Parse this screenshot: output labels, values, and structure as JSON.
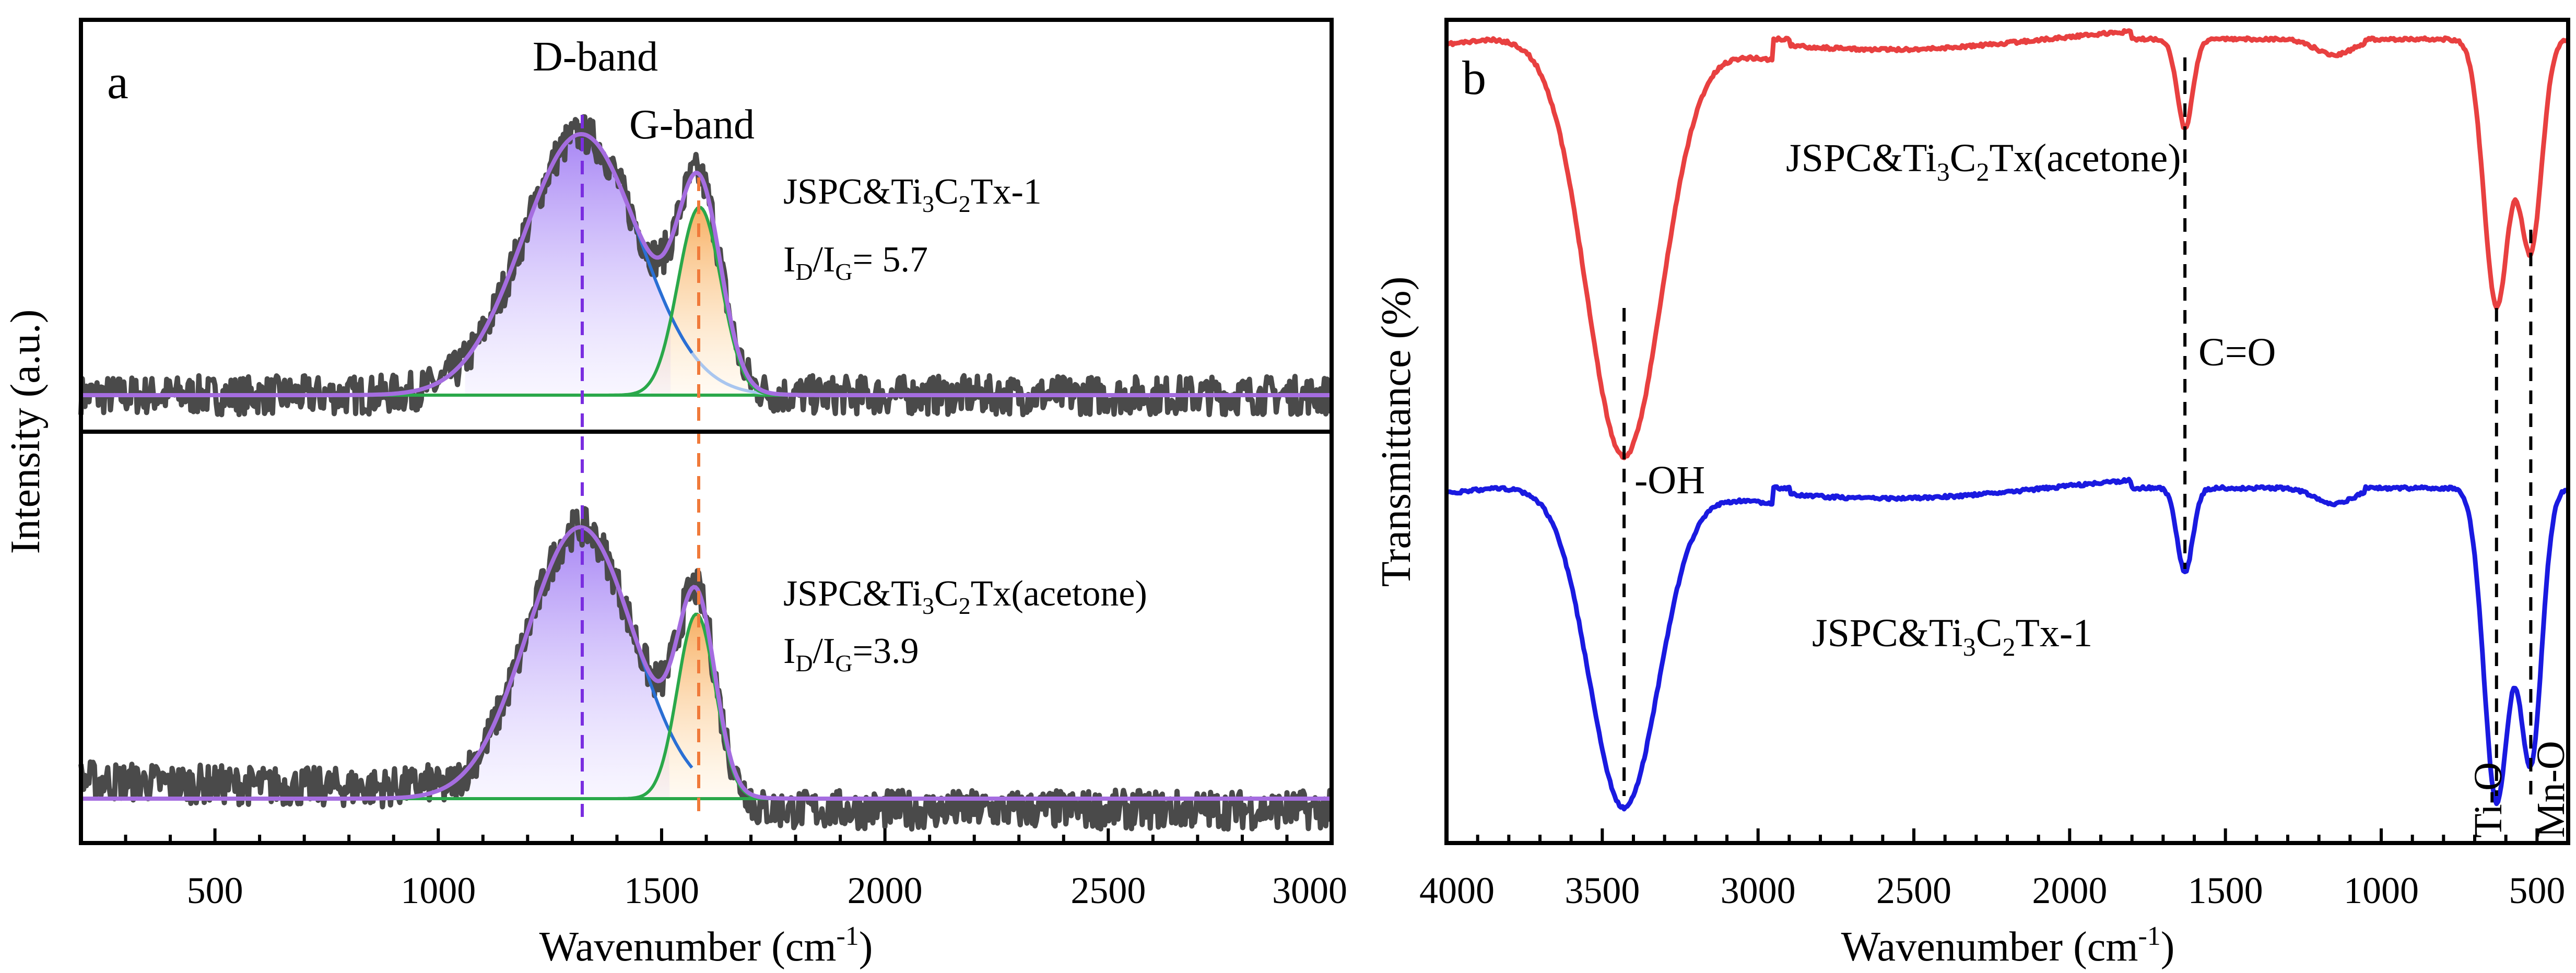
{
  "chart_data": [
    {
      "panel": "a",
      "type": "line",
      "title": "",
      "xlabel": "Wavenumber (cm",
      "xlabel_sup": "-1",
      "xlabel_end": ")",
      "ylabel": "Intensity (a.u.)",
      "xlim": [
        200,
        3000
      ],
      "x_ticks": [
        500,
        1000,
        1500,
        2000,
        2500,
        3000
      ],
      "bands": [
        {
          "name": "D-band",
          "position": 1325
        },
        {
          "name": "G-band",
          "position": 1580
        }
      ],
      "series": [
        {
          "name": "JSPC&Ti3C2Tx-1",
          "label_parts": [
            "JSPC&Ti",
            "3",
            "C",
            "2",
            "Tx-1"
          ],
          "ratio_parts": [
            "I",
            "D",
            "/I",
            "G",
            "= 5.7"
          ],
          "id_ig": 5.7,
          "d_peak": {
            "center": 1320,
            "width": 130,
            "height": 1.0
          },
          "g_peak": {
            "center": 1585,
            "width": 48,
            "height": 0.72
          }
        },
        {
          "name": "JSPC&Ti3C2Tx(acetone)",
          "label_parts": [
            "JSPC&Ti",
            "3",
            "C",
            "2",
            "Tx(acetone)"
          ],
          "ratio_parts": [
            "I",
            "D",
            "/I",
            "G",
            "=3.9"
          ],
          "id_ig": 3.9,
          "d_peak": {
            "center": 1318,
            "width": 120,
            "height": 1.0
          },
          "g_peak": {
            "center": 1578,
            "width": 42,
            "height": 0.68
          }
        }
      ]
    },
    {
      "panel": "b",
      "type": "line",
      "title": "",
      "xlabel": "Wavenumber (cm",
      "xlabel_sup": "-1",
      "xlabel_end": ")",
      "ylabel": "Transmittance (%)",
      "xlim": [
        4000,
        400
      ],
      "x_ticks": [
        4000,
        3500,
        3000,
        2500,
        2000,
        1500,
        1000,
        500
      ],
      "series": [
        {
          "name": "JSPC&Ti3C2Tx(acetone)",
          "label_parts": [
            "JSPC&Ti",
            "3",
            "C",
            "2",
            "Tx(acetone)"
          ],
          "color": "#e84040"
        },
        {
          "name": "JSPC&Ti3C2Tx-1",
          "label_parts": [
            "JSPC&Ti",
            "3",
            "C",
            "2",
            "Tx-1"
          ],
          "color": "#1a1ae0"
        }
      ],
      "annotations": [
        {
          "label": "-OH",
          "position": 3430
        },
        {
          "label": "C=O",
          "position": 1630
        },
        {
          "label": "Ti-O",
          "position": 630
        },
        {
          "label": "Mn-O",
          "position": 520
        }
      ]
    }
  ]
}
